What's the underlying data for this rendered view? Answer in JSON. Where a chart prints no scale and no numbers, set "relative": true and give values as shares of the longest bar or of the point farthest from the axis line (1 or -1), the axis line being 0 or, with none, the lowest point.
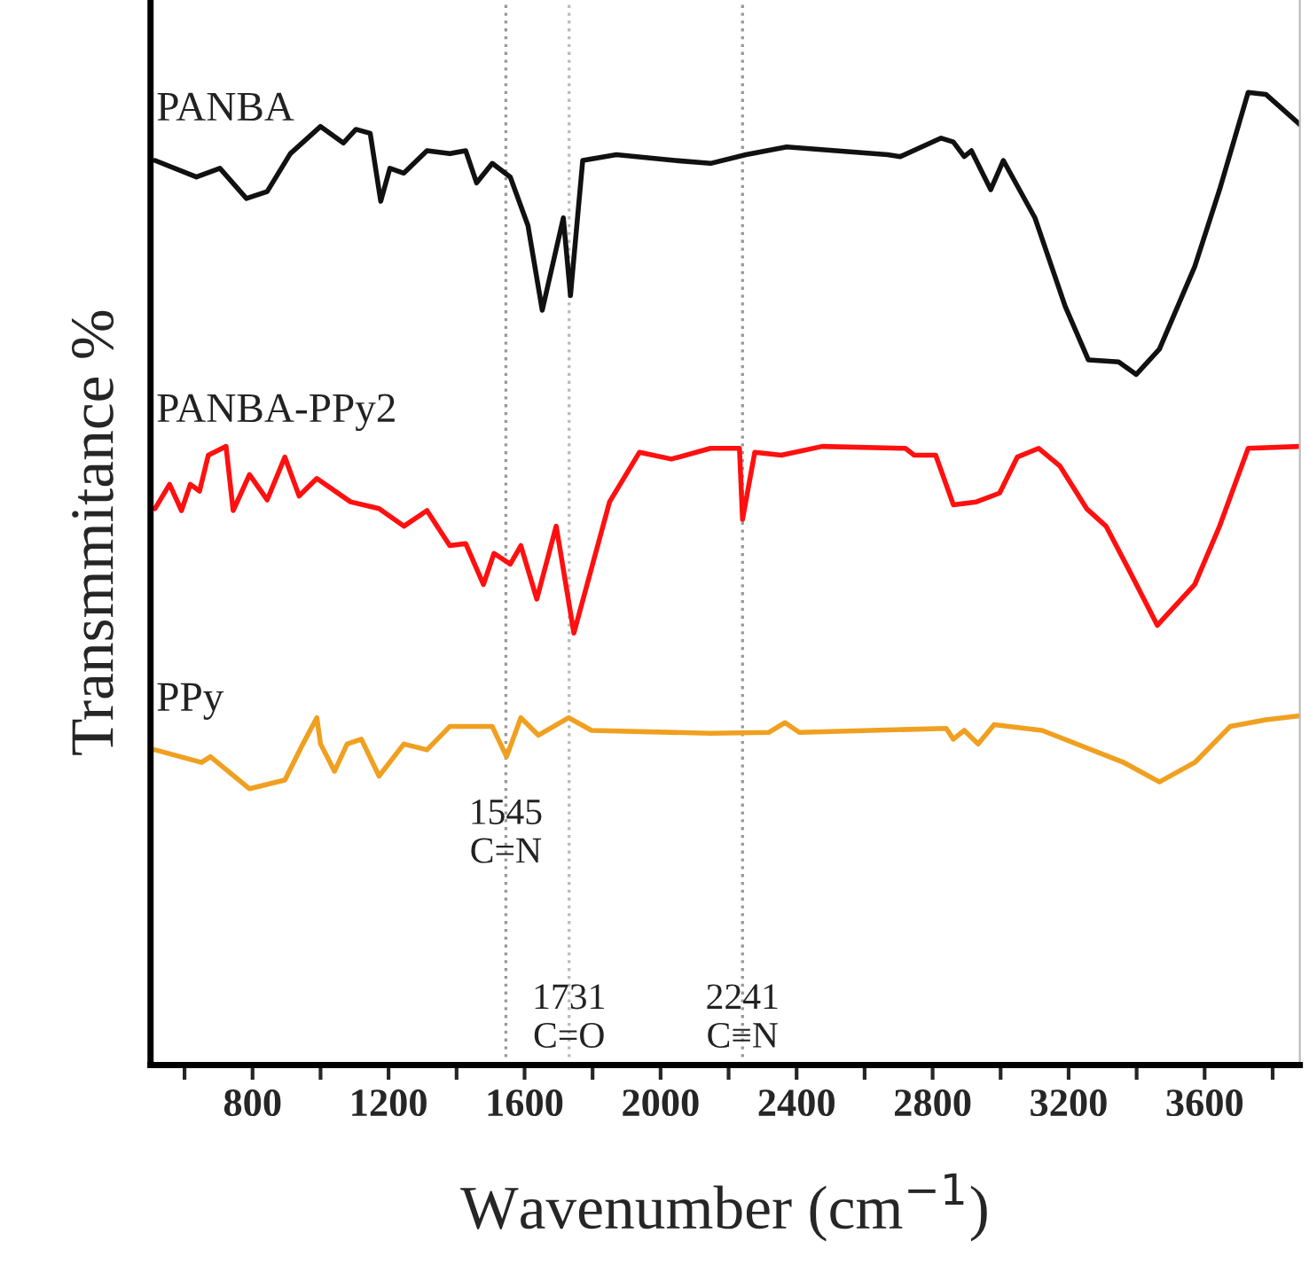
{
  "chart_data": {
    "type": "line",
    "relative": true,
    "xlabel": "Wavenumber (cm$^{−1}$)",
    "ylabel": "Transmmitance %",
    "xlim": [
      500,
      3880
    ],
    "xticks": [
      {
        "value": 600,
        "label": null
      },
      800,
      {
        "value": 1000,
        "label": null
      },
      1200,
      {
        "value": 1400,
        "label": null
      },
      1600,
      {
        "value": 1800,
        "label": null
      },
      2000,
      {
        "value": 2200,
        "label": null
      },
      2400,
      {
        "value": 2600,
        "label": null
      },
      2800,
      {
        "value": 3000,
        "label": null
      },
      3200,
      {
        "value": 3400,
        "label": null
      },
      3600,
      {
        "value": 3800,
        "label": null
      }
    ],
    "tick_labels": "x",
    "grid": false,
    "legend": false,
    "marker": "none",
    "line_style": "solid",
    "series": [
      {
        "name": "PANBA",
        "color": "#111111",
        "x": [
          513,
          635,
          704,
          782,
          843,
          911,
          1000,
          1067,
          1104,
          1146,
          1177,
          1204,
          1245,
          1313,
          1380,
          1427,
          1459,
          1505,
          1558,
          1610,
          1652,
          1714,
          1735,
          1771,
          1870,
          2042,
          2147,
          2251,
          2371,
          2668,
          2705,
          2825,
          2861,
          2893,
          2914,
          2971,
          3008,
          3101,
          3190,
          3258,
          3347,
          3399,
          3467,
          3571,
          3644,
          3728,
          3780,
          3880
        ],
        "values": [
          0.93,
          0.913,
          0.922,
          0.891,
          0.898,
          0.937,
          0.965,
          0.948,
          0.962,
          0.958,
          0.888,
          0.922,
          0.917,
          0.94,
          0.937,
          0.94,
          0.907,
          0.927,
          0.913,
          0.863,
          0.776,
          0.871,
          0.791,
          0.93,
          0.936,
          0.93,
          0.927,
          0.936,
          0.944,
          0.936,
          0.934,
          0.953,
          0.949,
          0.934,
          0.94,
          0.9,
          0.93,
          0.871,
          0.78,
          0.725,
          0.723,
          0.71,
          0.736,
          0.821,
          0.9,
          1.0,
          0.998,
          0.967
        ]
      },
      {
        "name": "PANBA-PPy2",
        "color": "#ff1010",
        "x": [
          513,
          556,
          591,
          617,
          644,
          670,
          722,
          743,
          791,
          843,
          895,
          937,
          989,
          1088,
          1172,
          1245,
          1313,
          1380,
          1427,
          1479,
          1510,
          1558,
          1589,
          1636,
          1693,
          1745,
          1850,
          1938,
          2032,
          2147,
          2232,
          2241,
          2277,
          2355,
          2475,
          2720,
          2746,
          2809,
          2861,
          2929,
          2997,
          3049,
          3112,
          3174,
          3253,
          3310,
          3373,
          3461,
          3571,
          3644,
          3728,
          3880
        ],
        "values": [
          0.572,
          0.597,
          0.57,
          0.597,
          0.59,
          0.627,
          0.636,
          0.57,
          0.607,
          0.581,
          0.625,
          0.585,
          0.603,
          0.579,
          0.572,
          0.554,
          0.57,
          0.534,
          0.536,
          0.494,
          0.526,
          0.515,
          0.534,
          0.479,
          0.554,
          0.444,
          0.579,
          0.63,
          0.623,
          0.634,
          0.634,
          0.561,
          0.63,
          0.627,
          0.636,
          0.634,
          0.627,
          0.627,
          0.576,
          0.579,
          0.588,
          0.625,
          0.634,
          0.616,
          0.572,
          0.554,
          0.512,
          0.452,
          0.494,
          0.554,
          0.634,
          0.636
        ]
      },
      {
        "name": "PPy",
        "color": "#f0a020",
        "x": [
          513,
          650,
          676,
          791,
          895,
          948,
          989,
          1000,
          1041,
          1078,
          1120,
          1172,
          1245,
          1313,
          1380,
          1443,
          1505,
          1547,
          1589,
          1641,
          1730,
          1797,
          2147,
          2319,
          2366,
          2408,
          2840,
          2861,
          2893,
          2934,
          2981,
          3122,
          3362,
          3467,
          3571,
          3675,
          3780,
          3880
        ],
        "values": [
          0.324,
          0.311,
          0.317,
          0.284,
          0.293,
          0.33,
          0.357,
          0.33,
          0.302,
          0.33,
          0.335,
          0.297,
          0.33,
          0.324,
          0.348,
          0.348,
          0.348,
          0.317,
          0.357,
          0.339,
          0.357,
          0.344,
          0.341,
          0.342,
          0.352,
          0.342,
          0.346,
          0.335,
          0.344,
          0.33,
          0.35,
          0.344,
          0.311,
          0.291,
          0.311,
          0.348,
          0.355,
          0.359
        ]
      }
    ],
    "ref_lines": [
      {
        "axis": "x",
        "value": 1545,
        "label": "1545\nC=N",
        "color": "#999999",
        "line_style": "dotted"
      },
      {
        "axis": "x",
        "value": 1731,
        "label": "1731\nC=O",
        "color": "#bbbbbb",
        "line_style": "dotted"
      },
      {
        "axis": "x",
        "value": 2241,
        "label": "2241\nC≡N",
        "color": "#999999",
        "line_style": "dotted"
      }
    ]
  }
}
